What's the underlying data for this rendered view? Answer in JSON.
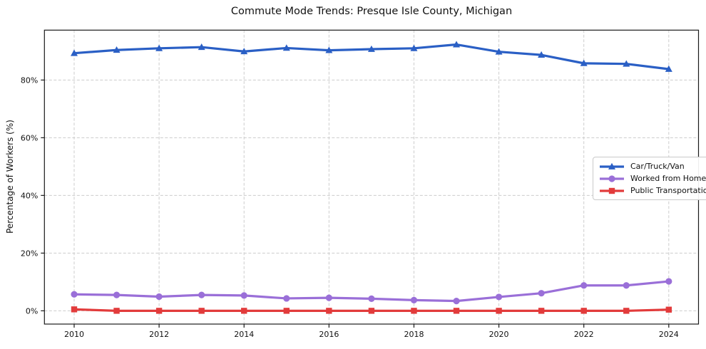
{
  "chart_data": {
    "type": "line",
    "title": "Commute Mode Trends: Presque Isle County, Michigan",
    "xlabel": "",
    "ylabel": "Percentage of Workers (%)",
    "x": [
      2010,
      2011,
      2012,
      2013,
      2014,
      2015,
      2016,
      2017,
      2018,
      2019,
      2020,
      2021,
      2022,
      2023,
      2024
    ],
    "series": [
      {
        "name": "Car/Truck/Van",
        "color": "#2a5fc5",
        "marker": "triangle",
        "values": [
          89.3,
          90.4,
          91.0,
          91.4,
          89.9,
          91.1,
          90.3,
          90.7,
          91.0,
          92.3,
          89.8,
          88.7,
          85.8,
          85.6,
          83.8
        ]
      },
      {
        "name": "Worked from Home",
        "color": "#9a6fd8",
        "marker": "circle",
        "values": [
          5.7,
          5.5,
          4.9,
          5.5,
          5.3,
          4.3,
          4.5,
          4.2,
          3.7,
          3.4,
          4.8,
          6.1,
          8.8,
          8.8,
          10.2
        ]
      },
      {
        "name": "Public Transportation",
        "color": "#e23b3b",
        "marker": "square",
        "values": [
          0.5,
          0.0,
          0.0,
          0.0,
          0.0,
          0.0,
          0.0,
          0.0,
          0.0,
          0.0,
          0.0,
          0.0,
          0.0,
          0.0,
          0.4
        ]
      }
    ],
    "xlim": [
      2009.3,
      2024.7
    ],
    "ylim": [
      -4.6,
      97.3
    ],
    "xticks": {
      "values": [
        2010,
        2012,
        2014,
        2016,
        2018,
        2020,
        2022,
        2024
      ],
      "labels": [
        "2010",
        "2012",
        "2014",
        "2016",
        "2018",
        "2020",
        "2022",
        "2024"
      ]
    },
    "yticks": {
      "values": [
        0,
        20,
        40,
        60,
        80
      ],
      "labels": [
        "0%",
        "20%",
        "40%",
        "60%",
        "80%"
      ]
    },
    "grid": true,
    "grid_color": "#cccccc",
    "legend_position": "center right"
  }
}
